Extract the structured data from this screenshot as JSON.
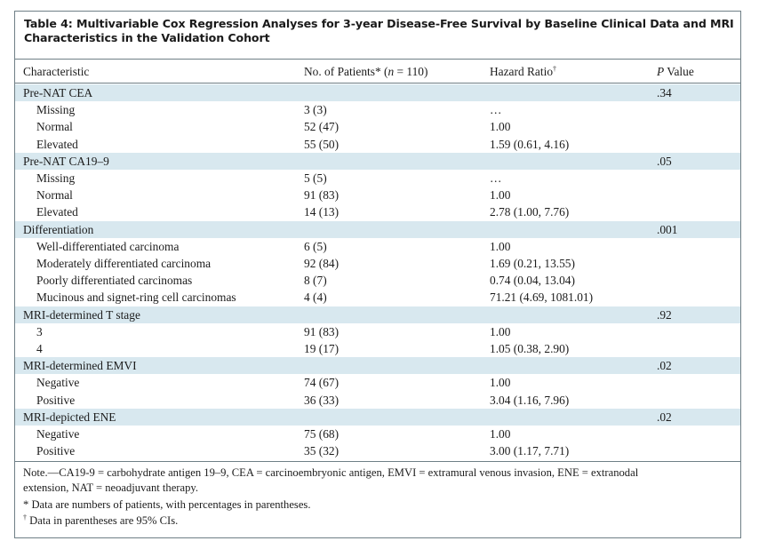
{
  "table": {
    "title": "Table 4: Multivariable Cox Regression Analyses for 3-year Disease-Free Survival by Baseline Clinical Data and MRI Characteristics in the Validation Cohort",
    "headers": {
      "characteristic": "Characteristic",
      "patients_pre": "No. of Patients* (",
      "patients_n": "n",
      "patients_post": " = 110)",
      "hazard": "Hazard Ratio",
      "hazard_mark": "†",
      "p_italic": "P",
      "p_rest": " Value"
    },
    "rows": [
      {
        "label": "Pre-NAT CEA",
        "patients": "",
        "hr": "",
        "p": ".34",
        "group": true
      },
      {
        "label": "Missing",
        "patients": "3 (3)",
        "hr": "…",
        "p": "",
        "group": false
      },
      {
        "label": "Normal",
        "patients": "52 (47)",
        "hr": "1.00",
        "p": "",
        "group": false
      },
      {
        "label": "Elevated",
        "patients": "55 (50)",
        "hr": "1.59 (0.61, 4.16)",
        "p": "",
        "group": false
      },
      {
        "label": "Pre-NAT CA19–9",
        "patients": "",
        "hr": "",
        "p": ".05",
        "group": true
      },
      {
        "label": "Missing",
        "patients": "5 (5)",
        "hr": "…",
        "p": "",
        "group": false
      },
      {
        "label": "Normal",
        "patients": "91 (83)",
        "hr": "1.00",
        "p": "",
        "group": false
      },
      {
        "label": "Elevated",
        "patients": "14 (13)",
        "hr": "2.78 (1.00, 7.76)",
        "p": "",
        "group": false
      },
      {
        "label": "Differentiation",
        "patients": "",
        "hr": "",
        "p": ".001",
        "group": true
      },
      {
        "label": "Well-differentiated carcinoma",
        "patients": "6 (5)",
        "hr": "1.00",
        "p": "",
        "group": false
      },
      {
        "label": "Moderately differentiated carcinoma",
        "patients": "92 (84)",
        "hr": "1.69 (0.21, 13.55)",
        "p": "",
        "group": false
      },
      {
        "label": "Poorly differentiated carcinomas",
        "patients": "8 (7)",
        "hr": "0.74 (0.04, 13.04)",
        "p": "",
        "group": false
      },
      {
        "label": "Mucinous and signet-ring cell carcinomas",
        "patients": "4 (4)",
        "hr": "71.21 (4.69, 1081.01)",
        "p": "",
        "group": false
      },
      {
        "label": "MRI-determined T stage",
        "patients": "",
        "hr": "",
        "p": ".92",
        "group": true
      },
      {
        "label": "3",
        "patients": "91 (83)",
        "hr": "1.00",
        "p": "",
        "group": false
      },
      {
        "label": "4",
        "patients": "19 (17)",
        "hr": "1.05 (0.38, 2.90)",
        "p": "",
        "group": false
      },
      {
        "label": "MRI-determined EMVI",
        "patients": "",
        "hr": "",
        "p": ".02",
        "group": true
      },
      {
        "label": "Negative",
        "patients": "74 (67)",
        "hr": "1.00",
        "p": "",
        "group": false
      },
      {
        "label": "Positive",
        "patients": "36 (33)",
        "hr": "3.04 (1.16, 7.96)",
        "p": "",
        "group": false
      },
      {
        "label": "MRI-depicted ENE",
        "patients": "",
        "hr": "",
        "p": ".02",
        "group": true
      },
      {
        "label": "Negative",
        "patients": "75 (68)",
        "hr": "1.00",
        "p": "",
        "group": false
      },
      {
        "label": "Positive",
        "patients": "35 (32)",
        "hr": "3.00 (1.17, 7.71)",
        "p": "",
        "group": false
      }
    ],
    "notes": {
      "abbrev_line1": "Note.—CA19-9 =  carbohydrate antigen 19–9, CEA = carcinoembryonic antigen, EMVI = extramural venous invasion, ENE = extranodal",
      "abbrev_line2": "extension, NAT = neoadjuvant therapy.",
      "star": "* Data are numbers of patients, with percentages in parentheses.",
      "dagger_mark": "†",
      "dagger": " Data in parentheses are 95% CIs."
    },
    "colors": {
      "shade": "#d8e8ef",
      "rule": "#6f7f86"
    }
  }
}
